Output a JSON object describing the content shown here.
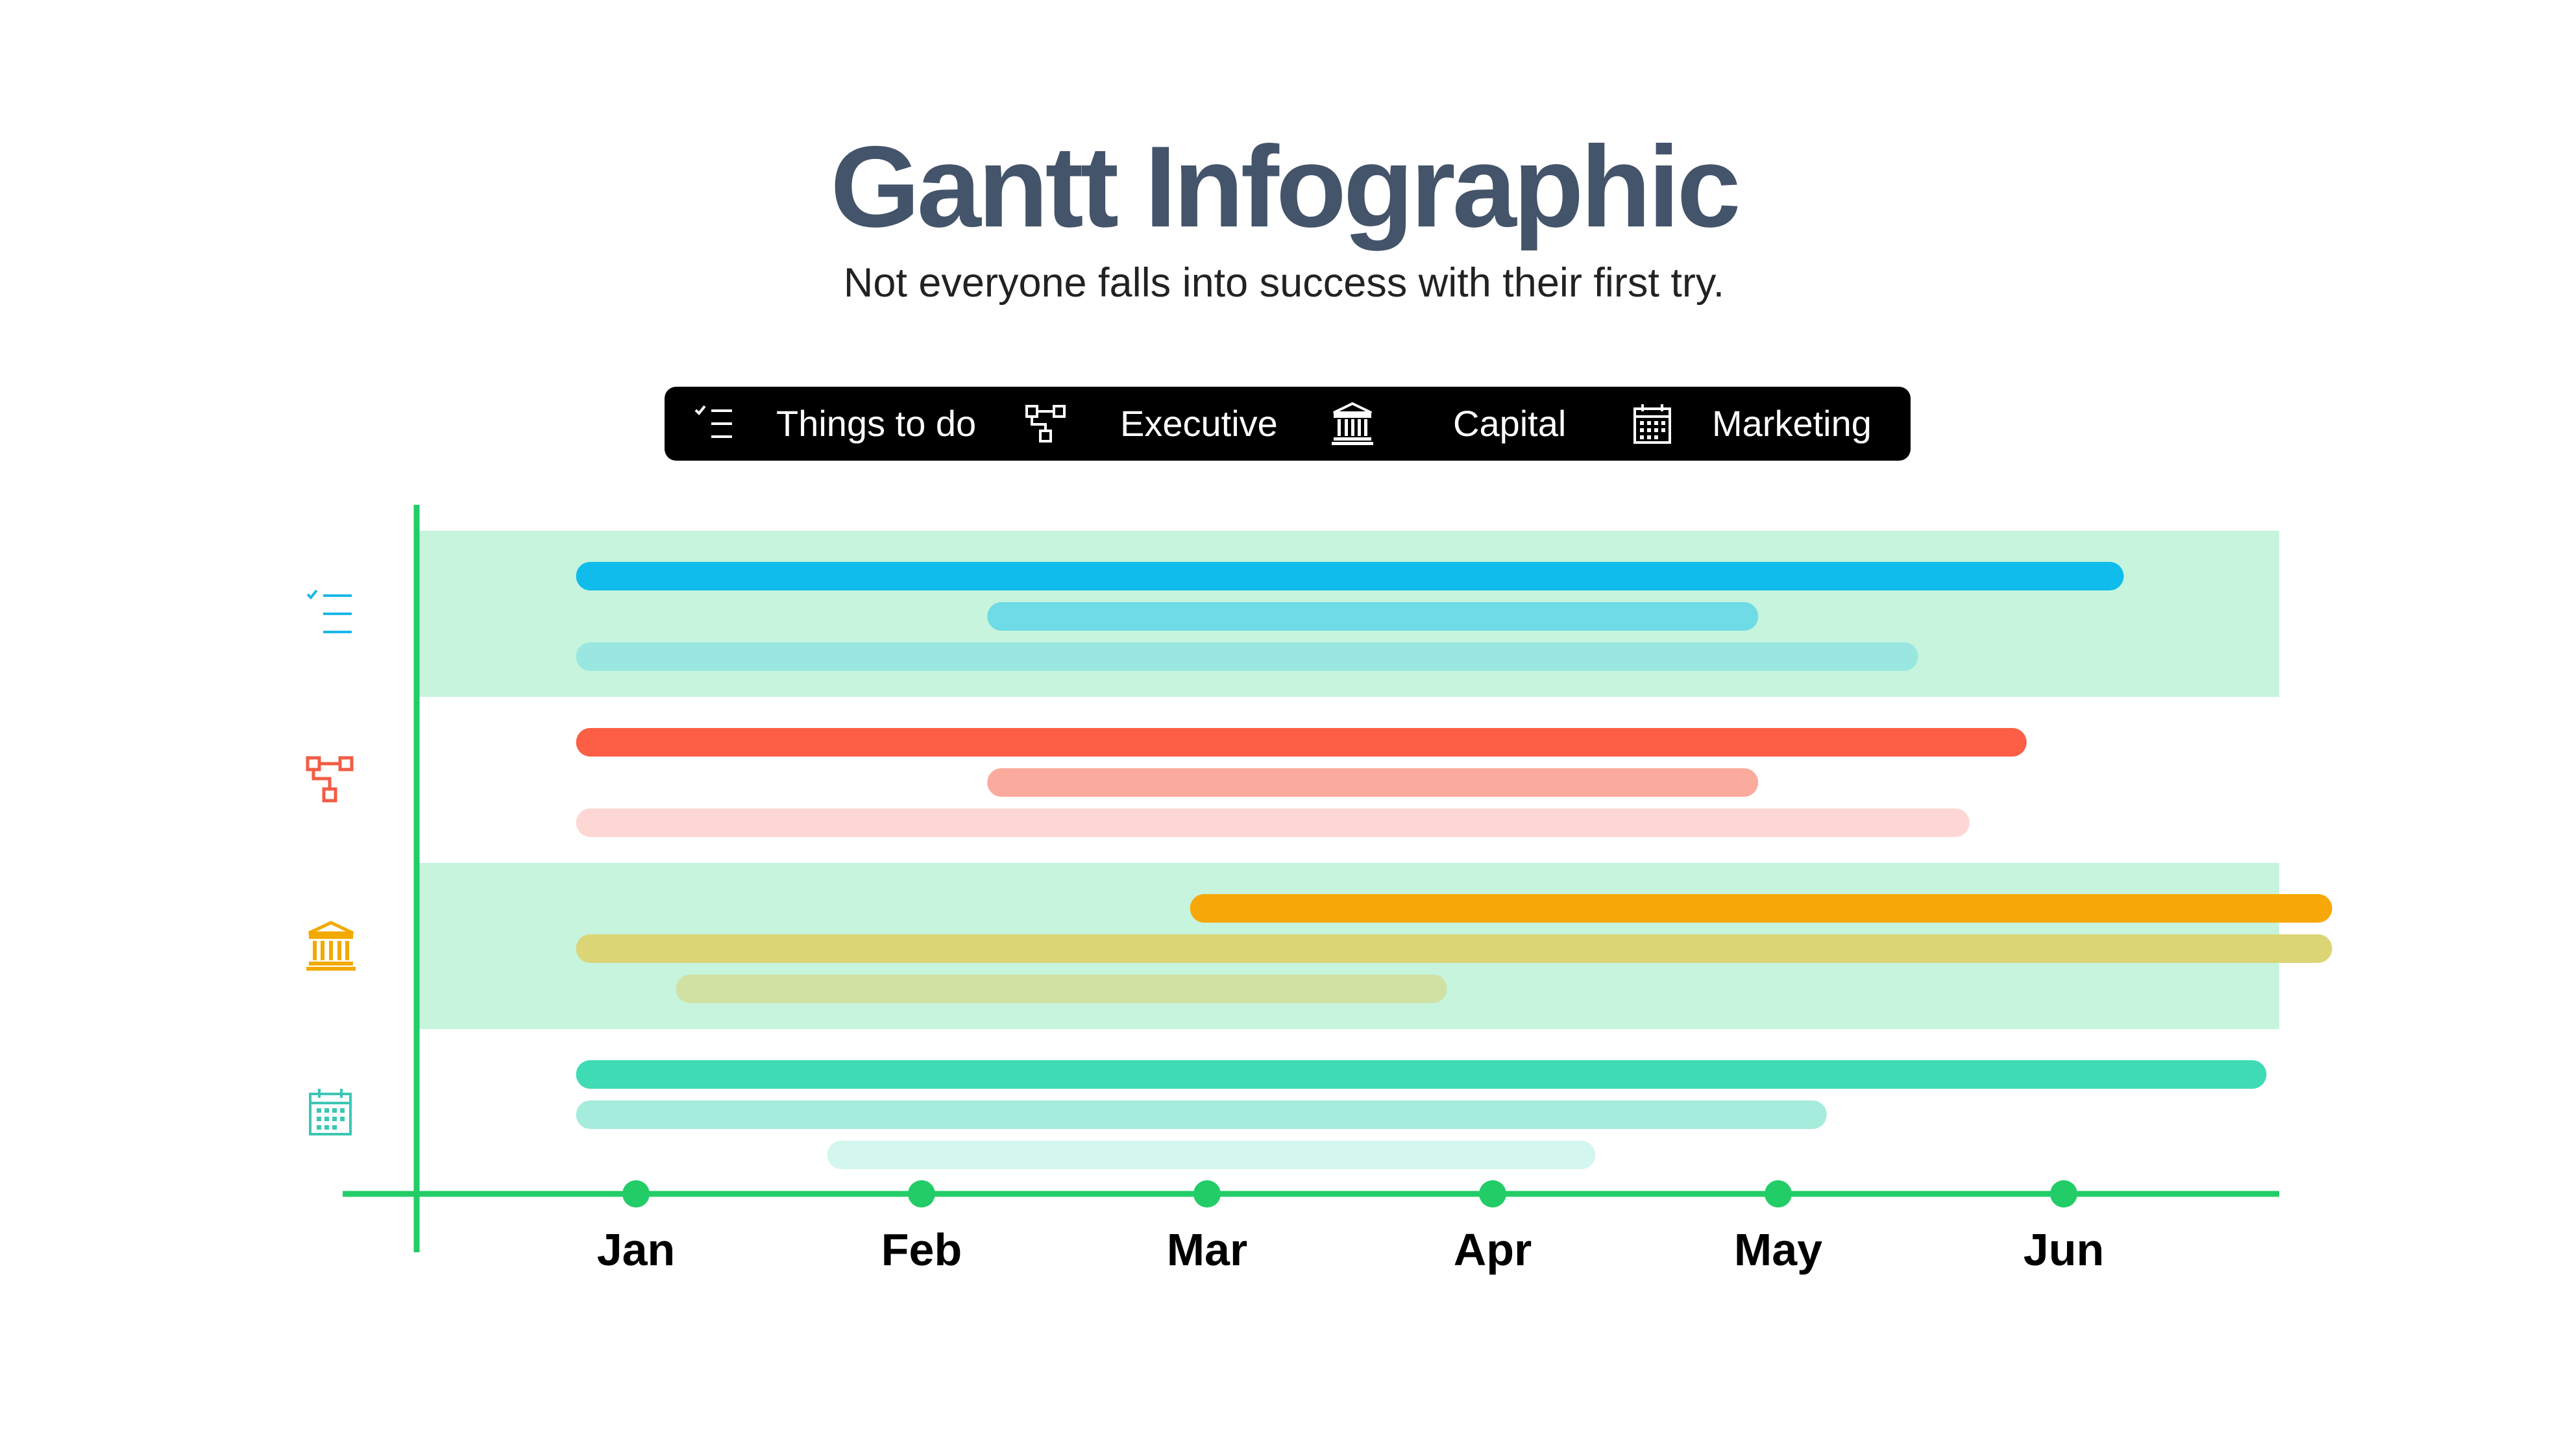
{
  "title": "Gantt Infographic",
  "subtitle": "Not everyone falls into success with their first try.",
  "legend": [
    {
      "icon": "checklist-icon",
      "label": "Things to do",
      "color": "#ffffff"
    },
    {
      "icon": "org-chart-icon",
      "label": "Executive",
      "color": "#ffffff"
    },
    {
      "icon": "bank-icon",
      "label": "Capital",
      "color": "#ffffff"
    },
    {
      "icon": "calendar-icon",
      "label": "Marketing",
      "color": "#ffffff"
    }
  ],
  "colors": {
    "axis": "#22cc66",
    "band": "#c6f4dc",
    "legend_bg": "#000000",
    "title": "#44546a"
  },
  "chart_data": {
    "type": "gantt",
    "x_axis": {
      "ticks": [
        "Jan",
        "Feb",
        "Mar",
        "Apr",
        "May",
        "Jun"
      ],
      "range_months": [
        0.29,
        6.79
      ]
    },
    "rows": [
      {
        "icon": "checklist-icon",
        "icon_color": "#1ab8e8",
        "shaded": true,
        "bars": [
          {
            "start": 0.79,
            "end": 6.21,
            "color": "#0fbcec"
          },
          {
            "start": 2.23,
            "end": 4.93,
            "color": "#6edbe6"
          },
          {
            "start": 0.79,
            "end": 5.49,
            "color": "#99e7e0"
          }
        ]
      },
      {
        "icon": "org-chart-icon",
        "icon_color": "#f25c45",
        "shaded": false,
        "bars": [
          {
            "start": 0.79,
            "end": 5.87,
            "color": "#fc5f46"
          },
          {
            "start": 2.23,
            "end": 4.93,
            "color": "#fbab9e"
          },
          {
            "start": 0.79,
            "end": 5.67,
            "color": "#fdd7d3"
          }
        ]
      },
      {
        "icon": "bank-icon",
        "icon_color": "#f2a900",
        "shaded": true,
        "bars": [
          {
            "start": 2.94,
            "end": 6.94,
            "color": "#f7a808"
          },
          {
            "start": 0.79,
            "end": 6.94,
            "color": "#dcd576"
          },
          {
            "start": 1.14,
            "end": 3.84,
            "color": "#d1e1a4"
          }
        ]
      },
      {
        "icon": "calendar-icon",
        "icon_color": "#3cc7b4",
        "shaded": false,
        "bars": [
          {
            "start": 0.79,
            "end": 6.71,
            "color": "#3fdbb5"
          },
          {
            "start": 0.79,
            "end": 5.17,
            "color": "#a6ecdc"
          },
          {
            "start": 1.67,
            "end": 4.36,
            "color": "#d3f6ee"
          }
        ]
      }
    ]
  }
}
